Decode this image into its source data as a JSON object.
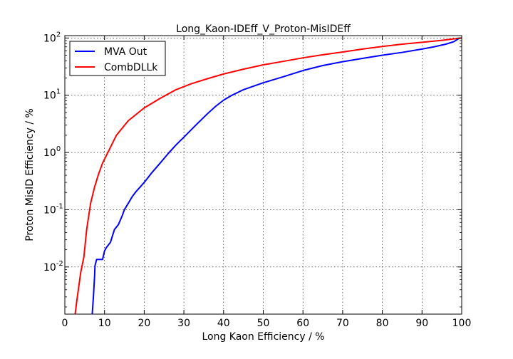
{
  "chart_data": {
    "type": "line",
    "title": "Long_Kaon-IDEff_V_Proton-MisIDEff",
    "xlabel": "Long Kaon Efficiency / %",
    "ylabel": "Proton MisID Efficiency / %",
    "xlim": [
      0,
      100
    ],
    "ylim": [
      0.0015,
      110
    ],
    "yscale": "log",
    "grid": true,
    "legend_position": "top-left",
    "x_ticks": [
      "0",
      "10",
      "20",
      "30",
      "40",
      "50",
      "60",
      "70",
      "80",
      "90",
      "100"
    ],
    "y_ticks": [
      {
        "base": "10",
        "exp": "-2",
        "value": 0.01
      },
      {
        "base": "10",
        "exp": "-1",
        "value": 0.1
      },
      {
        "base": "10",
        "exp": "0",
        "value": 1
      },
      {
        "base": "10",
        "exp": "1",
        "value": 10
      },
      {
        "base": "10",
        "exp": "2",
        "value": 100
      }
    ],
    "series": [
      {
        "name": "MVA Out",
        "color": "#0000ff",
        "x": [
          6.9,
          7.2,
          7.5,
          7.6,
          8.0,
          8.5,
          9.5,
          10.0,
          10.5,
          11.5,
          12.0,
          12.5,
          13.5,
          14.5,
          15.0,
          16.0,
          17.0,
          18.0,
          19.0,
          20.0,
          22.0,
          24.0,
          26.0,
          28.0,
          30.0,
          33.0,
          36.0,
          38.0,
          40.0,
          42.0,
          45.0,
          50.0,
          55.0,
          60.0,
          65.0,
          70.0,
          75.0,
          80.0,
          85.0,
          90.0,
          93.0,
          96.0,
          98.0,
          99.5
        ],
        "y": [
          0.0015,
          0.003,
          0.007,
          0.0105,
          0.0135,
          0.0135,
          0.0135,
          0.019,
          0.022,
          0.027,
          0.035,
          0.045,
          0.055,
          0.08,
          0.1,
          0.13,
          0.17,
          0.21,
          0.25,
          0.3,
          0.45,
          0.65,
          0.95,
          1.35,
          1.85,
          3.0,
          4.8,
          6.4,
          8.2,
          9.9,
          12.5,
          16.5,
          21.0,
          27.0,
          33.0,
          38.5,
          44.0,
          50.0,
          56.0,
          64.0,
          70.0,
          78.0,
          86.0,
          100.0
        ]
      },
      {
        "name": "CombDLLk",
        "color": "#ff0000",
        "x": [
          2.6,
          3.0,
          3.5,
          4.0,
          4.8,
          5.5,
          6.5,
          7.5,
          8.5,
          9.5,
          11.0,
          13.0,
          16.0,
          20.0,
          24.0,
          28.0,
          32.0,
          36.0,
          40.0,
          45.0,
          50.0,
          55.0,
          60.0,
          65.0,
          70.0,
          75.0,
          80.0,
          85.0,
          90.0,
          95.0,
          100.0
        ],
        "y": [
          0.0015,
          0.0025,
          0.0045,
          0.008,
          0.015,
          0.045,
          0.13,
          0.25,
          0.42,
          0.65,
          1.05,
          2.0,
          3.6,
          6.0,
          8.8,
          12.5,
          16.0,
          19.5,
          23.5,
          28.5,
          34.0,
          39.0,
          45.0,
          51.0,
          57.0,
          64.0,
          71.0,
          78.0,
          84.0,
          91.0,
          100.0
        ]
      }
    ]
  }
}
